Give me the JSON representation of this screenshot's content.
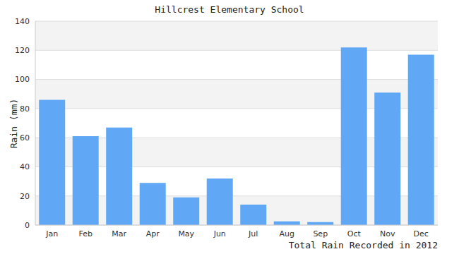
{
  "chart_data": {
    "type": "bar",
    "title": "Hillcrest Elementary School",
    "x_label": "Total Rain Recorded in 2012",
    "y_label": "Rain (mm)",
    "categories": [
      "Jan",
      "Feb",
      "Mar",
      "Apr",
      "May",
      "Jun",
      "Jul",
      "Aug",
      "Sep",
      "Oct",
      "Nov",
      "Dec"
    ],
    "values": [
      86,
      61,
      67,
      29,
      19,
      32,
      14,
      2.5,
      2,
      122,
      91,
      117
    ],
    "color": "#60a8f5",
    "ylim": [
      0,
      140
    ],
    "yticks": [
      0,
      20,
      40,
      60,
      80,
      100,
      120,
      140
    ],
    "grid": true
  }
}
